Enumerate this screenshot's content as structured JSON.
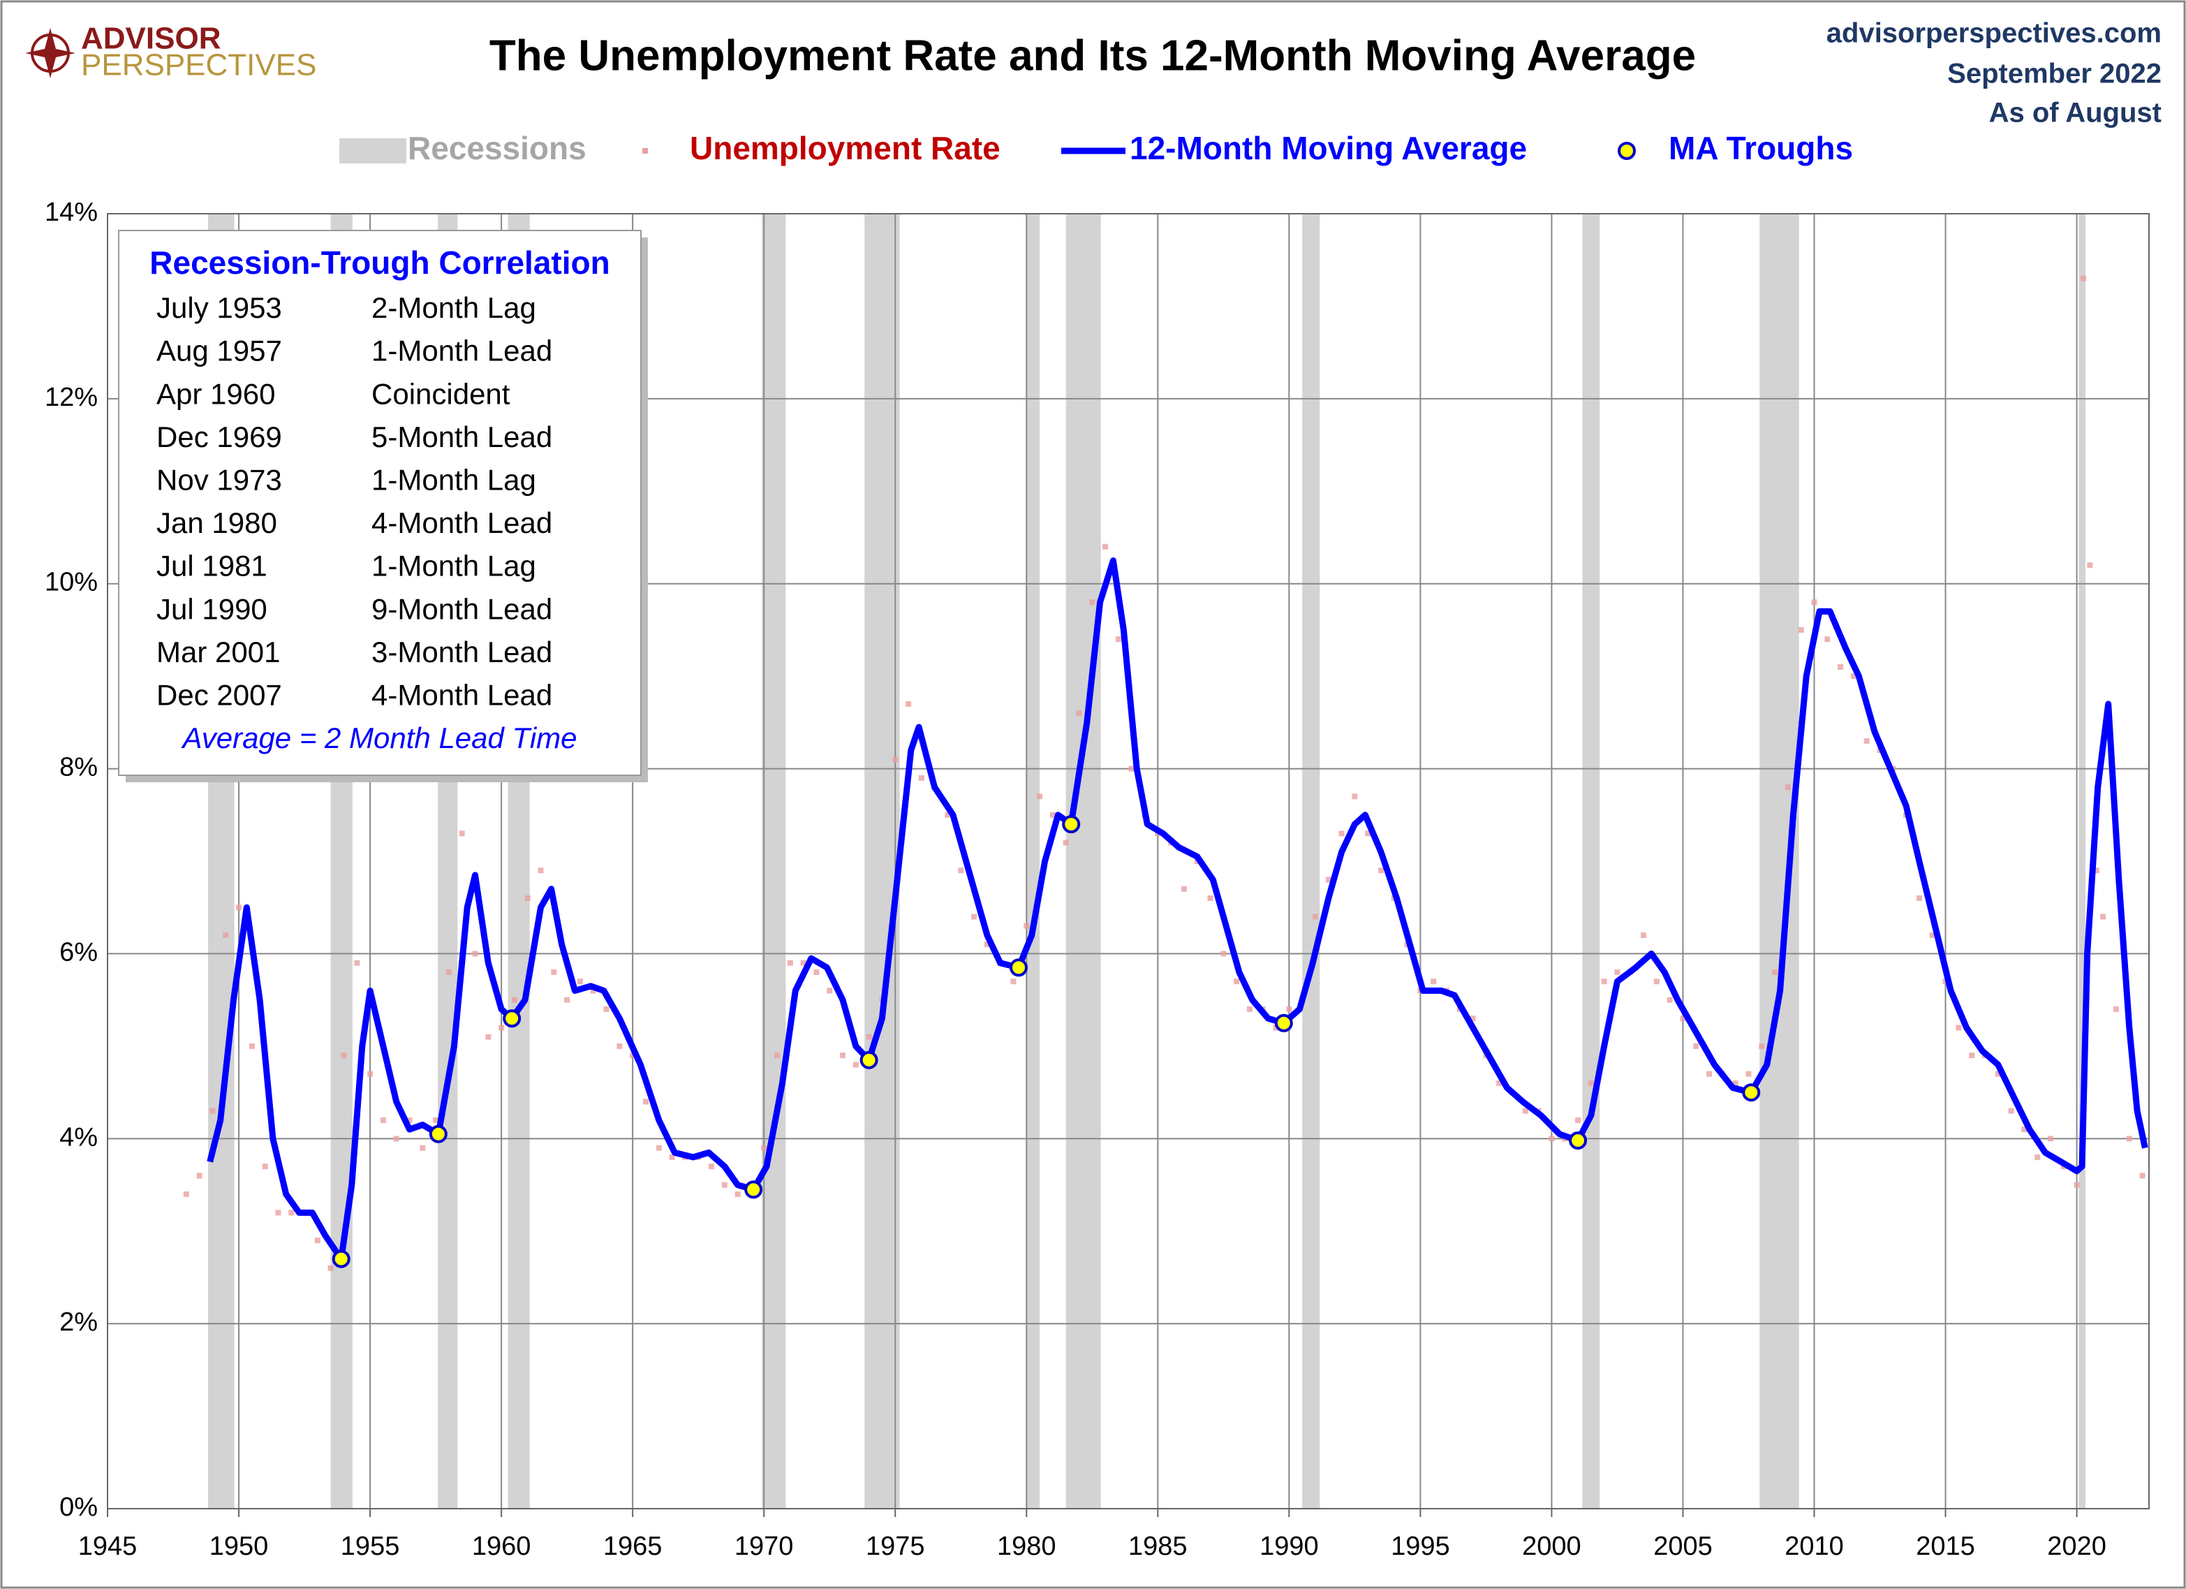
{
  "chart_data": {
    "type": "line",
    "title": "The Unemployment Rate and Its 12-Month Moving Average",
    "logo": [
      "ADVISOR",
      "PERSPECTIVES"
    ],
    "source": [
      "advisorperspectives.com",
      "September 2022",
      "As of August"
    ],
    "xlim": [
      1945,
      2022.75
    ],
    "xticks": [
      1945,
      1950,
      1955,
      1960,
      1965,
      1970,
      1975,
      1980,
      1985,
      1990,
      1995,
      2000,
      2005,
      2010,
      2015,
      2020
    ],
    "ylim": [
      0,
      14
    ],
    "yticks": [
      {
        "value": 0,
        "label": "0%"
      },
      {
        "value": 2,
        "label": "2%"
      },
      {
        "value": 4,
        "label": "4%"
      },
      {
        "value": 6,
        "label": "6%"
      },
      {
        "value": 8,
        "label": "8%"
      },
      {
        "value": 10,
        "label": "10%"
      },
      {
        "value": 12,
        "label": "12%"
      },
      {
        "value": 14,
        "label": "14%"
      }
    ],
    "grid": true,
    "recessions": {
      "name": "Recessions",
      "color": "#d3d3d3",
      "periods": [
        [
          1948.83,
          1949.83
        ],
        [
          1953.5,
          1954.33
        ],
        [
          1957.58,
          1958.33
        ],
        [
          1960.25,
          1961.08
        ],
        [
          1969.92,
          1970.83
        ],
        [
          1973.83,
          1975.17
        ],
        [
          1980.0,
          1980.5
        ],
        [
          1981.5,
          1982.83
        ],
        [
          1990.5,
          1991.17
        ],
        [
          2001.17,
          2001.83
        ],
        [
          2007.92,
          2009.42
        ],
        [
          2020.08,
          2020.33
        ]
      ]
    },
    "series": [
      {
        "name": "Unemployment Rate",
        "color": "#e8a0a0",
        "kind": "points",
        "x": [
          1948.0,
          1948.5,
          1949.0,
          1949.5,
          1950.0,
          1950.5,
          1951.0,
          1951.5,
          1952.0,
          1952.5,
          1953.0,
          1953.5,
          1954.0,
          1954.5,
          1955.0,
          1955.5,
          1956.0,
          1956.5,
          1957.0,
          1957.5,
          1958.0,
          1958.5,
          1959.0,
          1959.5,
          1960.0,
          1960.5,
          1961.0,
          1961.5,
          1962.0,
          1962.5,
          1963.0,
          1963.5,
          1964.0,
          1964.5,
          1965.0,
          1965.5,
          1966.0,
          1966.5,
          1967.0,
          1967.5,
          1968.0,
          1968.5,
          1969.0,
          1969.5,
          1970.0,
          1970.5,
          1971.0,
          1971.5,
          1972.0,
          1972.5,
          1973.0,
          1973.5,
          1974.0,
          1974.5,
          1975.0,
          1975.5,
          1976.0,
          1976.5,
          1977.0,
          1977.5,
          1978.0,
          1978.5,
          1979.0,
          1979.5,
          1980.0,
          1980.5,
          1981.0,
          1981.5,
          1982.0,
          1982.5,
          1983.0,
          1983.5,
          1984.0,
          1984.5,
          1985.0,
          1985.5,
          1986.0,
          1986.5,
          1987.0,
          1987.5,
          1988.0,
          1988.5,
          1989.0,
          1989.5,
          1990.0,
          1990.5,
          1991.0,
          1991.5,
          1992.0,
          1992.5,
          1993.0,
          1993.5,
          1994.0,
          1994.5,
          1995.0,
          1995.5,
          1996.0,
          1996.5,
          1997.0,
          1997.5,
          1998.0,
          1998.5,
          1999.0,
          1999.5,
          2000.0,
          2000.5,
          2001.0,
          2001.5,
          2002.0,
          2002.5,
          2003.0,
          2003.5,
          2004.0,
          2004.5,
          2005.0,
          2005.5,
          2006.0,
          2006.5,
          2007.0,
          2007.5,
          2008.0,
          2008.5,
          2009.0,
          2009.5,
          2010.0,
          2010.5,
          2011.0,
          2011.5,
          2012.0,
          2012.5,
          2013.0,
          2013.5,
          2014.0,
          2014.5,
          2015.0,
          2015.5,
          2016.0,
          2016.5,
          2017.0,
          2017.5,
          2018.0,
          2018.5,
          2019.0,
          2019.5,
          2020.0,
          2020.25,
          2020.5,
          2020.75,
          2021.0,
          2021.5,
          2022.0,
          2022.5
        ],
        "values": [
          3.4,
          3.6,
          4.3,
          6.2,
          6.5,
          5.0,
          3.7,
          3.2,
          3.2,
          3.2,
          2.9,
          2.6,
          4.9,
          5.9,
          4.7,
          4.2,
          4.0,
          4.2,
          3.9,
          4.2,
          5.8,
          7.3,
          6.0,
          5.1,
          5.2,
          5.5,
          6.6,
          6.9,
          5.8,
          5.5,
          5.7,
          5.6,
          5.4,
          5.0,
          4.9,
          4.4,
          3.9,
          3.8,
          3.8,
          3.8,
          3.7,
          3.5,
          3.4,
          3.5,
          3.9,
          4.9,
          5.9,
          5.9,
          5.8,
          5.6,
          4.9,
          4.8,
          5.1,
          5.5,
          8.1,
          8.7,
          7.9,
          7.8,
          7.5,
          6.9,
          6.4,
          6.1,
          5.9,
          5.7,
          6.3,
          7.7,
          7.5,
          7.2,
          8.6,
          9.8,
          10.4,
          9.4,
          8.0,
          7.5,
          7.3,
          7.2,
          6.7,
          7.0,
          6.6,
          6.0,
          5.7,
          5.4,
          5.4,
          5.2,
          5.4,
          5.5,
          6.4,
          6.8,
          7.3,
          7.7,
          7.3,
          6.9,
          6.6,
          6.1,
          5.6,
          5.7,
          5.6,
          5.4,
          5.3,
          4.9,
          4.6,
          4.5,
          4.3,
          4.3,
          4.0,
          4.0,
          4.2,
          4.6,
          5.7,
          5.8,
          5.8,
          6.2,
          5.7,
          5.5,
          5.3,
          5.0,
          4.7,
          4.7,
          4.6,
          4.7,
          5.0,
          5.8,
          7.8,
          9.5,
          9.8,
          9.4,
          9.1,
          9.0,
          8.3,
          8.2,
          8.0,
          7.5,
          6.6,
          6.2,
          5.7,
          5.2,
          4.9,
          4.9,
          4.7,
          4.3,
          4.1,
          3.8,
          4.0,
          3.7,
          3.5,
          13.3,
          10.2,
          6.9,
          6.4,
          5.4,
          4.0,
          3.6
        ]
      },
      {
        "name": "12-Month Moving Average",
        "color": "#0000ff",
        "kind": "line",
        "x": [
          1948.9,
          1949.3,
          1949.8,
          1950.3,
          1950.8,
          1951.3,
          1951.8,
          1952.3,
          1952.8,
          1953.3,
          1953.9,
          1954.3,
          1954.7,
          1955.0,
          1955.5,
          1956.0,
          1956.5,
          1957.0,
          1957.6,
          1958.2,
          1958.7,
          1959.0,
          1959.5,
          1960.0,
          1960.4,
          1960.9,
          1961.5,
          1961.9,
          1962.3,
          1962.8,
          1963.4,
          1963.9,
          1964.5,
          1965.3,
          1966.0,
          1966.6,
          1967.3,
          1967.9,
          1968.5,
          1969.0,
          1969.6,
          1970.1,
          1970.7,
          1971.2,
          1971.8,
          1972.4,
          1973.0,
          1973.5,
          1974.0,
          1974.5,
          1975.0,
          1975.6,
          1975.9,
          1976.5,
          1977.2,
          1977.8,
          1978.5,
          1979.0,
          1979.7,
          1980.2,
          1980.7,
          1981.2,
          1981.7,
          1982.3,
          1982.8,
          1983.3,
          1983.7,
          1984.2,
          1984.6,
          1985.2,
          1985.8,
          1986.5,
          1987.1,
          1987.6,
          1988.1,
          1988.6,
          1989.2,
          1989.8,
          1990.4,
          1990.9,
          1991.5,
          1992.0,
          1992.5,
          1992.9,
          1993.5,
          1994.1,
          1994.7,
          1995.1,
          1995.8,
          1996.3,
          1997.0,
          1997.6,
          1998.3,
          1998.9,
          1999.6,
          2000.3,
          2001.0,
          2001.5,
          2002.0,
          2002.5,
          2003.2,
          2003.8,
          2004.3,
          2004.8,
          2005.5,
          2006.2,
          2006.9,
          2007.6,
          2008.2,
          2008.7,
          2009.2,
          2009.7,
          2010.2,
          2010.6,
          2011.2,
          2011.7,
          2012.3,
          2012.9,
          2013.5,
          2014.0,
          2014.6,
          2015.2,
          2015.8,
          2016.4,
          2017.0,
          2017.6,
          2018.2,
          2018.8,
          2019.4,
          2020.0,
          2020.2,
          2020.4,
          2020.8,
          2021.2,
          2021.6,
          2022.0,
          2022.3,
          2022.6
        ],
        "values": [
          3.75,
          4.2,
          5.5,
          6.5,
          5.5,
          4.0,
          3.4,
          3.2,
          3.2,
          2.95,
          2.7,
          3.5,
          5.0,
          5.6,
          5.0,
          4.4,
          4.1,
          4.15,
          4.05,
          5.0,
          6.5,
          6.85,
          5.9,
          5.4,
          5.3,
          5.5,
          6.5,
          6.7,
          6.1,
          5.6,
          5.65,
          5.6,
          5.3,
          4.8,
          4.2,
          3.85,
          3.8,
          3.85,
          3.7,
          3.5,
          3.45,
          3.7,
          4.6,
          5.6,
          5.95,
          5.85,
          5.5,
          5.0,
          4.85,
          5.3,
          6.6,
          8.2,
          8.45,
          7.8,
          7.5,
          6.9,
          6.2,
          5.9,
          5.85,
          6.2,
          7.0,
          7.5,
          7.4,
          8.5,
          9.8,
          10.25,
          9.5,
          8.0,
          7.4,
          7.3,
          7.15,
          7.05,
          6.8,
          6.3,
          5.8,
          5.5,
          5.3,
          5.25,
          5.4,
          5.9,
          6.6,
          7.1,
          7.4,
          7.5,
          7.1,
          6.6,
          6.0,
          5.6,
          5.6,
          5.55,
          5.2,
          4.9,
          4.55,
          4.4,
          4.25,
          4.05,
          3.98,
          4.25,
          5.0,
          5.7,
          5.85,
          6.0,
          5.8,
          5.5,
          5.15,
          4.8,
          4.55,
          4.5,
          4.8,
          5.6,
          7.5,
          9.0,
          9.7,
          9.7,
          9.3,
          9.0,
          8.4,
          8.0,
          7.6,
          7.0,
          6.3,
          5.6,
          5.2,
          4.95,
          4.8,
          4.45,
          4.1,
          3.85,
          3.75,
          3.65,
          3.7,
          6.0,
          7.8,
          8.7,
          6.8,
          5.2,
          4.3,
          3.9
        ]
      },
      {
        "name": "MA Troughs",
        "color": "#ffff00",
        "kind": "troughs",
        "x": [
          1953.9,
          1957.6,
          1960.4,
          1969.6,
          1974.0,
          1979.7,
          1981.7,
          1989.8,
          2001.0,
          2007.6
        ],
        "values": [
          2.7,
          4.05,
          5.3,
          3.45,
          4.85,
          5.85,
          7.4,
          5.25,
          3.98,
          4.5
        ]
      }
    ],
    "correlation": {
      "title": "Recession-Trough Correlation",
      "rows": [
        [
          "July 1953",
          "2-Month Lag"
        ],
        [
          "Aug 1957",
          "1-Month Lead"
        ],
        [
          "Apr 1960",
          "Coincident"
        ],
        [
          "Dec 1969",
          "5-Month Lead"
        ],
        [
          "Nov 1973",
          "1-Month Lag"
        ],
        [
          "Jan 1980",
          "4-Month Lead"
        ],
        [
          "Jul 1981",
          "1-Month Lag"
        ],
        [
          "Jul 1990",
          "9-Month Lead"
        ],
        [
          "Mar 2001",
          "3-Month Lead"
        ],
        [
          "Dec 2007",
          "4-Month Lead"
        ]
      ],
      "footer": "Average = 2 Month Lead Time"
    }
  }
}
